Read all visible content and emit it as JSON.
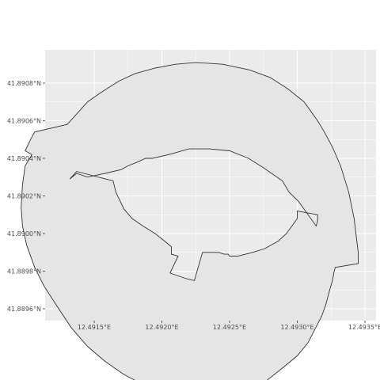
{
  "chart_data": {
    "type": "map",
    "panel_background": "#ebebeb",
    "grid_color": "#ffffff",
    "shape_fill": "#e5e5e5",
    "shape_stroke": "#333333",
    "x_ticks": [
      {
        "value": 12.4915,
        "label": "12.4915°E"
      },
      {
        "value": 12.492,
        "label": "12.4920°E"
      },
      {
        "value": 12.4925,
        "label": "12.4925°E"
      },
      {
        "value": 12.493,
        "label": "12.4930°E"
      },
      {
        "value": 12.4935,
        "label": "12.4935°E"
      }
    ],
    "y_ticks": [
      {
        "value": 41.8896,
        "label": "41.8896°N"
      },
      {
        "value": 41.8898,
        "label": "41.8898°N"
      },
      {
        "value": 41.89,
        "label": "41.8900°N"
      },
      {
        "value": 41.8902,
        "label": "41.8902°N"
      },
      {
        "value": 41.8904,
        "label": "41.8904°N"
      },
      {
        "value": 41.8906,
        "label": "41.8906°N"
      },
      {
        "value": 41.8908,
        "label": "41.8908°N"
      }
    ],
    "xlim": [
      12.49115,
      12.49355
    ],
    "ylim": [
      41.88954,
      41.89097
    ],
    "outer_ring": [
      [
        12.4913,
        41.89058
      ],
      [
        12.49135,
        41.89062
      ],
      [
        12.49145,
        41.8907
      ],
      [
        12.49155,
        41.89075
      ],
      [
        12.49168,
        41.89081
      ],
      [
        12.4918,
        41.89085
      ],
      [
        12.49195,
        41.89088
      ],
      [
        12.4921,
        41.8909
      ],
      [
        12.49225,
        41.89091
      ],
      [
        12.49245,
        41.8909
      ],
      [
        12.49265,
        41.89087
      ],
      [
        12.4928,
        41.89083
      ],
      [
        12.49293,
        41.89077
      ],
      [
        12.49305,
        41.8907
      ],
      [
        12.49315,
        41.8906
      ],
      [
        12.4932,
        41.89054
      ],
      [
        12.49326,
        41.89046
      ],
      [
        12.49332,
        41.89036
      ],
      [
        12.49338,
        41.89022
      ],
      [
        12.49342,
        41.89008
      ],
      [
        12.49345,
        41.8899
      ],
      [
        12.49345,
        41.88984
      ],
      [
        12.49328,
        41.88982
      ],
      [
        12.49327,
        41.88979
      ],
      [
        12.49326,
        41.88975
      ],
      [
        12.49324,
        41.8897
      ],
      [
        12.49321,
        41.88962
      ],
      [
        12.49318,
        41.88956
      ],
      [
        12.49313,
        41.88949
      ],
      [
        12.49308,
        41.88942
      ],
      [
        12.493,
        41.88935
      ],
      [
        12.4929,
        41.88929
      ],
      [
        12.49276,
        41.88921
      ],
      [
        12.49265,
        41.88917
      ],
      [
        12.4925,
        41.88914
      ],
      [
        12.49235,
        41.88913
      ],
      [
        12.4922,
        41.88913
      ],
      [
        12.49205,
        41.88915
      ],
      [
        12.49188,
        41.88919
      ],
      [
        12.49172,
        41.88925
      ],
      [
        12.49158,
        41.88932
      ],
      [
        12.49145,
        41.8894
      ],
      [
        12.49133,
        41.8895
      ],
      [
        12.49122,
        41.88962
      ],
      [
        12.49113,
        41.88972
      ],
      [
        12.49106,
        41.88982
      ],
      [
        12.491,
        41.88994
      ],
      [
        12.49097,
        41.89004
      ],
      [
        12.49096,
        41.89014
      ],
      [
        12.49097,
        41.89026
      ],
      [
        12.49099,
        41.89036
      ],
      [
        12.49104,
        41.89042
      ],
      [
        12.49099,
        41.89044
      ],
      [
        12.49103,
        41.8905
      ],
      [
        12.49106,
        41.89054
      ],
      [
        12.4913,
        41.89058
      ]
    ],
    "inner_hole": [
      [
        12.49132,
        41.89029
      ],
      [
        12.49137,
        41.89033
      ],
      [
        12.49164,
        41.89028
      ],
      [
        12.49166,
        41.89022
      ],
      [
        12.49168,
        41.89019
      ],
      [
        12.49172,
        41.89013
      ],
      [
        12.49178,
        41.89008
      ],
      [
        12.49186,
        41.89004
      ],
      [
        12.49195,
        41.89
      ],
      [
        12.49202,
        41.88996
      ],
      [
        12.49207,
        41.88993
      ],
      [
        12.49207,
        41.88989
      ],
      [
        12.49212,
        41.88988
      ],
      [
        12.49206,
        41.88979
      ],
      [
        12.49218,
        41.88976
      ],
      [
        12.49224,
        41.88975
      ],
      [
        12.4923,
        41.8899
      ],
      [
        12.49238,
        41.8899
      ],
      [
        12.49242,
        41.8899
      ],
      [
        12.49246,
        41.88989
      ],
      [
        12.49249,
        41.88989
      ],
      [
        12.4925,
        41.88988
      ],
      [
        12.49256,
        41.88988
      ],
      [
        12.49267,
        41.8899
      ],
      [
        12.49276,
        41.88992
      ],
      [
        12.49286,
        41.88996
      ],
      [
        12.49292,
        41.89
      ],
      [
        12.49296,
        41.89004
      ],
      [
        12.493,
        41.89008
      ],
      [
        12.493,
        41.89012
      ],
      [
        12.49315,
        41.8901
      ],
      [
        12.49315,
        41.89007
      ],
      [
        12.49314,
        41.89004
      ],
      [
        12.49301,
        41.89017
      ],
      [
        12.49294,
        41.89022
      ],
      [
        12.49289,
        41.89028
      ],
      [
        12.49285,
        41.8903
      ],
      [
        12.49275,
        41.89035
      ],
      [
        12.49264,
        41.8904
      ],
      [
        12.4925,
        41.89044
      ],
      [
        12.49235,
        41.89045
      ],
      [
        12.4922,
        41.89045
      ],
      [
        12.49205,
        41.89042
      ],
      [
        12.49193,
        41.8904
      ],
      [
        12.49188,
        41.8904
      ],
      [
        12.49182,
        41.89038
      ],
      [
        12.49175,
        41.89036
      ],
      [
        12.4917,
        41.89034
      ],
      [
        12.49158,
        41.89032
      ],
      [
        12.49145,
        41.8903
      ],
      [
        12.49137,
        41.89032
      ],
      [
        12.49132,
        41.89029
      ]
    ]
  }
}
